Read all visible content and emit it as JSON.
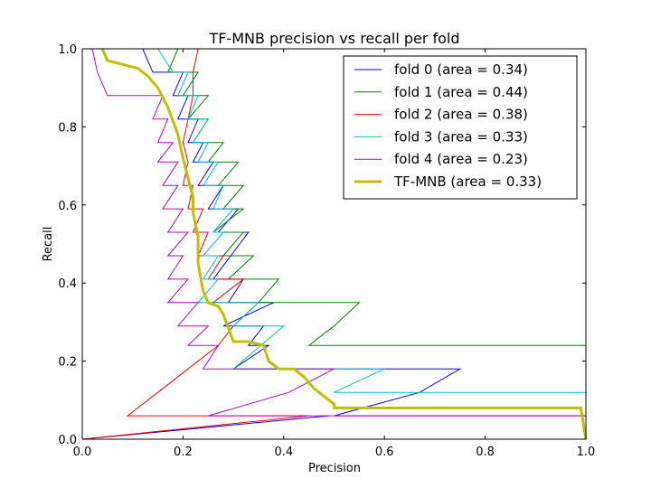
{
  "chart_data": {
    "type": "line",
    "title": "TF-MNB precision vs recall per fold",
    "xlabel": "Precision",
    "ylabel": "Recall",
    "xlim": [
      0.0,
      1.0
    ],
    "ylim": [
      0.0,
      1.0
    ],
    "xticks": [
      "0.0",
      "0.2",
      "0.4",
      "0.6",
      "0.8",
      "1.0"
    ],
    "yticks": [
      "0.0",
      "0.2",
      "0.4",
      "0.6",
      "0.8",
      "1.0"
    ],
    "grid": false,
    "legend_position": "top-right",
    "series": [
      {
        "name": "fold 0 (area = 0.34)",
        "color": "#0000ff",
        "width": 1,
        "points": [
          [
            1.0,
            0.06
          ],
          [
            0.5,
            0.06
          ],
          [
            0.67,
            0.12
          ],
          [
            0.75,
            0.18
          ],
          [
            0.3,
            0.18
          ],
          [
            0.37,
            0.24
          ],
          [
            0.33,
            0.24
          ],
          [
            0.36,
            0.29
          ],
          [
            0.28,
            0.29
          ],
          [
            0.38,
            0.35
          ],
          [
            0.29,
            0.35
          ],
          [
            0.32,
            0.41
          ],
          [
            0.26,
            0.41
          ],
          [
            0.33,
            0.53
          ],
          [
            0.27,
            0.53
          ],
          [
            0.31,
            0.59
          ],
          [
            0.25,
            0.59
          ],
          [
            0.28,
            0.65
          ],
          [
            0.23,
            0.65
          ],
          [
            0.26,
            0.71
          ],
          [
            0.22,
            0.71
          ],
          [
            0.24,
            0.76
          ],
          [
            0.21,
            0.76
          ],
          [
            0.23,
            0.82
          ],
          [
            0.19,
            0.82
          ],
          [
            0.21,
            0.88
          ],
          [
            0.18,
            0.88
          ],
          [
            0.2,
            0.94
          ],
          [
            0.14,
            0.94
          ],
          [
            0.12,
            1.0
          ],
          [
            0.0,
            1.0
          ],
          [
            0.0,
            0.0
          ],
          [
            0.49,
            0.06
          ]
        ]
      },
      {
        "name": "fold 1 (area = 0.44)",
        "color": "#008000",
        "width": 1,
        "points": [
          [
            1.0,
            0.0
          ],
          [
            1.0,
            0.24
          ],
          [
            0.45,
            0.24
          ],
          [
            0.5,
            0.29
          ],
          [
            0.55,
            0.35
          ],
          [
            0.35,
            0.35
          ],
          [
            0.39,
            0.41
          ],
          [
            0.29,
            0.41
          ],
          [
            0.34,
            0.47
          ],
          [
            0.28,
            0.47
          ],
          [
            0.32,
            0.53
          ],
          [
            0.26,
            0.53
          ],
          [
            0.32,
            0.59
          ],
          [
            0.28,
            0.59
          ],
          [
            0.32,
            0.65
          ],
          [
            0.27,
            0.65
          ],
          [
            0.31,
            0.71
          ],
          [
            0.25,
            0.71
          ],
          [
            0.28,
            0.76
          ],
          [
            0.22,
            0.76
          ],
          [
            0.25,
            0.82
          ],
          [
            0.21,
            0.82
          ],
          [
            0.25,
            0.88
          ],
          [
            0.2,
            0.88
          ],
          [
            0.23,
            0.94
          ],
          [
            0.17,
            0.94
          ],
          [
            0.19,
            1.0
          ],
          [
            0.0,
            1.0
          ]
        ]
      },
      {
        "name": "fold 2 (area = 0.38)",
        "color": "#ff0000",
        "width": 1,
        "points": [
          [
            0.0,
            0.0
          ],
          [
            0.45,
            0.06
          ],
          [
            0.09,
            0.06
          ],
          [
            0.15,
            0.12
          ],
          [
            0.21,
            0.18
          ],
          [
            0.27,
            0.24
          ],
          [
            0.3,
            0.29
          ],
          [
            0.35,
            0.35
          ],
          [
            0.26,
            0.35
          ],
          [
            0.32,
            0.41
          ],
          [
            0.25,
            0.41
          ],
          [
            0.28,
            0.47
          ],
          [
            0.23,
            0.47
          ],
          [
            0.25,
            0.53
          ],
          [
            0.22,
            0.53
          ],
          [
            0.24,
            0.59
          ],
          [
            0.21,
            0.59
          ],
          [
            0.22,
            0.65
          ],
          [
            0.2,
            0.65
          ],
          [
            0.21,
            0.71
          ],
          [
            0.2,
            0.76
          ],
          [
            0.21,
            0.82
          ],
          [
            0.22,
            0.88
          ],
          [
            0.22,
            0.94
          ],
          [
            0.23,
            1.0
          ]
        ]
      },
      {
        "name": "fold 3 (area = 0.33)",
        "color": "#00bfbf",
        "width": 1,
        "points": [
          [
            1.0,
            0.12
          ],
          [
            0.5,
            0.12
          ],
          [
            0.6,
            0.18
          ],
          [
            0.3,
            0.18
          ],
          [
            0.4,
            0.29
          ],
          [
            0.3,
            0.29
          ],
          [
            0.35,
            0.35
          ],
          [
            0.23,
            0.35
          ],
          [
            0.27,
            0.41
          ],
          [
            0.24,
            0.41
          ],
          [
            0.27,
            0.47
          ],
          [
            0.24,
            0.47
          ],
          [
            0.28,
            0.53
          ],
          [
            0.26,
            0.53
          ],
          [
            0.3,
            0.59
          ],
          [
            0.26,
            0.59
          ],
          [
            0.28,
            0.65
          ],
          [
            0.24,
            0.65
          ],
          [
            0.27,
            0.71
          ],
          [
            0.23,
            0.71
          ],
          [
            0.25,
            0.76
          ],
          [
            0.22,
            0.76
          ],
          [
            0.25,
            0.82
          ],
          [
            0.21,
            0.82
          ],
          [
            0.23,
            0.88
          ],
          [
            0.19,
            0.88
          ],
          [
            0.21,
            0.94
          ],
          [
            0.18,
            0.94
          ],
          [
            0.15,
            1.0
          ],
          [
            0.0,
            1.0
          ]
        ]
      },
      {
        "name": "fold 4 (area = 0.23)",
        "color": "#bf00bf",
        "width": 1,
        "points": [
          [
            1.0,
            0.06
          ],
          [
            0.25,
            0.06
          ],
          [
            0.41,
            0.12
          ],
          [
            0.5,
            0.18
          ],
          [
            0.24,
            0.18
          ],
          [
            0.27,
            0.24
          ],
          [
            0.21,
            0.24
          ],
          [
            0.25,
            0.29
          ],
          [
            0.19,
            0.29
          ],
          [
            0.23,
            0.35
          ],
          [
            0.17,
            0.35
          ],
          [
            0.21,
            0.41
          ],
          [
            0.17,
            0.41
          ],
          [
            0.2,
            0.47
          ],
          [
            0.17,
            0.47
          ],
          [
            0.21,
            0.53
          ],
          [
            0.17,
            0.53
          ],
          [
            0.2,
            0.59
          ],
          [
            0.16,
            0.59
          ],
          [
            0.19,
            0.65
          ],
          [
            0.16,
            0.65
          ],
          [
            0.19,
            0.71
          ],
          [
            0.15,
            0.71
          ],
          [
            0.18,
            0.76
          ],
          [
            0.15,
            0.76
          ],
          [
            0.17,
            0.82
          ],
          [
            0.14,
            0.82
          ],
          [
            0.16,
            0.88
          ],
          [
            0.05,
            0.88
          ],
          [
            0.03,
            0.94
          ],
          [
            0.02,
            1.0
          ],
          [
            0.0,
            1.0
          ]
        ]
      },
      {
        "name": "TF-MNB (area = 0.33)",
        "color": "#bfbf00",
        "width": 3,
        "points": [
          [
            1.0,
            0.0
          ],
          [
            0.99,
            0.08
          ],
          [
            0.5,
            0.08
          ],
          [
            0.5,
            0.09
          ],
          [
            0.49,
            0.1
          ],
          [
            0.46,
            0.13
          ],
          [
            0.44,
            0.16
          ],
          [
            0.42,
            0.18
          ],
          [
            0.39,
            0.18
          ],
          [
            0.37,
            0.2
          ],
          [
            0.36,
            0.24
          ],
          [
            0.33,
            0.25
          ],
          [
            0.3,
            0.25
          ],
          [
            0.28,
            0.32
          ],
          [
            0.27,
            0.34
          ],
          [
            0.25,
            0.35
          ],
          [
            0.24,
            0.38
          ],
          [
            0.23,
            0.45
          ],
          [
            0.23,
            0.52
          ],
          [
            0.22,
            0.58
          ],
          [
            0.22,
            0.62
          ],
          [
            0.21,
            0.67
          ],
          [
            0.2,
            0.72
          ],
          [
            0.19,
            0.78
          ],
          [
            0.17,
            0.85
          ],
          [
            0.15,
            0.9
          ],
          [
            0.13,
            0.93
          ],
          [
            0.11,
            0.95
          ],
          [
            0.08,
            0.96
          ],
          [
            0.05,
            0.97
          ],
          [
            0.04,
            1.0
          ]
        ]
      }
    ]
  }
}
